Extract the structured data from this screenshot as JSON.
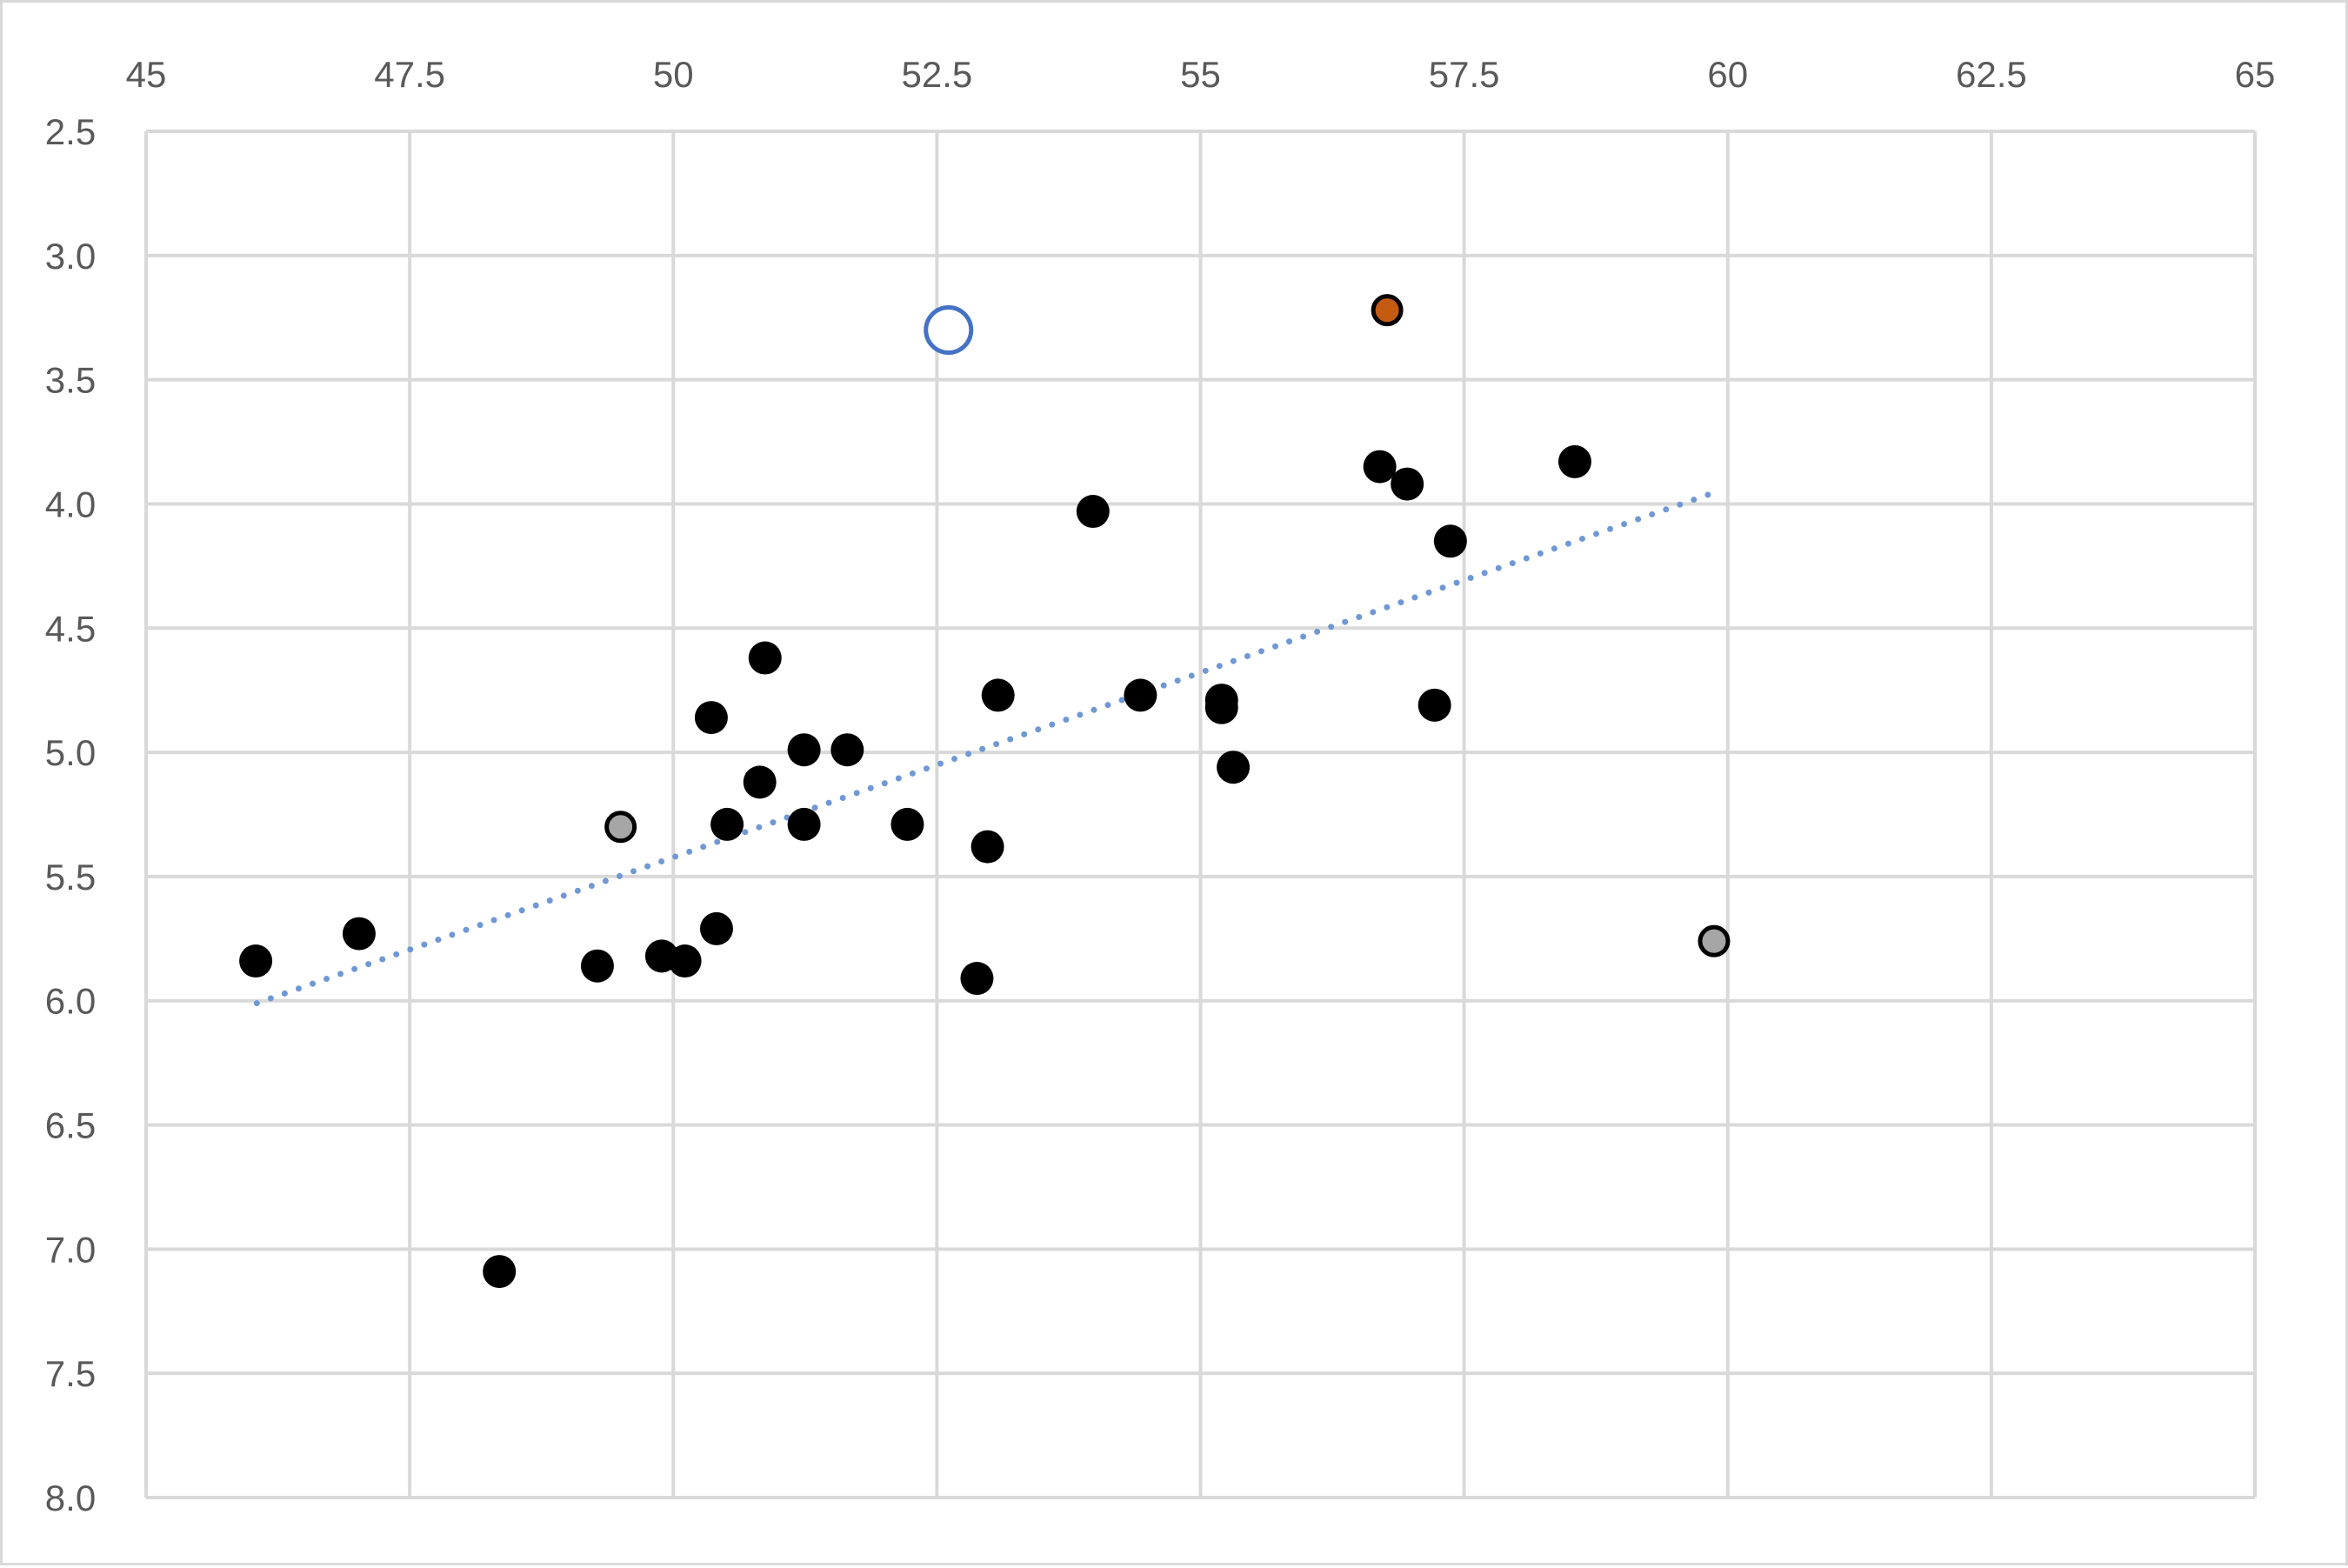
{
  "chart_data": {
    "type": "scatter",
    "title": "",
    "xlabel": "",
    "ylabel": "",
    "xlim": [
      45,
      65
    ],
    "ylim": [
      2.5,
      8.0
    ],
    "y_reversed": true,
    "x_axis_position": "top",
    "grid": true,
    "x_ticks": [
      "45",
      "47.5",
      "50",
      "52.5",
      "55",
      "57.5",
      "60",
      "62.5",
      "65"
    ],
    "x_tick_values": [
      45,
      47.5,
      50,
      52.5,
      55,
      57.5,
      60,
      62.5,
      65
    ],
    "y_ticks": [
      "2.5",
      "3.0",
      "3.5",
      "4.0",
      "4.5",
      "5.0",
      "5.5",
      "6.0",
      "6.5",
      "7.0",
      "7.5",
      "8.0"
    ],
    "y_tick_values": [
      2.5,
      3.0,
      3.5,
      4.0,
      4.5,
      5.0,
      5.5,
      6.0,
      6.5,
      7.0,
      7.5,
      8.0
    ],
    "series": [
      {
        "name": "main",
        "color": "#000000",
        "style": "filled",
        "points": [
          [
            46.04,
            5.84
          ],
          [
            47.02,
            5.73
          ],
          [
            48.35,
            7.09
          ],
          [
            49.28,
            5.86
          ],
          [
            49.89,
            5.82
          ],
          [
            50.11,
            5.84
          ],
          [
            50.41,
            5.71
          ],
          [
            50.36,
            4.86
          ],
          [
            50.51,
            5.29
          ],
          [
            50.82,
            5.12
          ],
          [
            50.87,
            4.62
          ],
          [
            51.24,
            4.99
          ],
          [
            51.24,
            5.29
          ],
          [
            51.65,
            4.99
          ],
          [
            52.22,
            5.29
          ],
          [
            52.88,
            5.91
          ],
          [
            52.98,
            5.38
          ],
          [
            53.08,
            4.77
          ],
          [
            53.98,
            4.03
          ],
          [
            54.43,
            4.77
          ],
          [
            55.2,
            4.79
          ],
          [
            55.2,
            4.82
          ],
          [
            55.31,
            5.06
          ],
          [
            56.7,
            3.85
          ],
          [
            56.96,
            3.92
          ],
          [
            57.22,
            4.81
          ],
          [
            57.37,
            4.15
          ],
          [
            58.55,
            3.83
          ]
        ]
      },
      {
        "name": "gray",
        "color": "#a6a6a6",
        "style": "outlined",
        "points": [
          [
            49.5,
            5.3
          ],
          [
            59.87,
            5.76
          ]
        ]
      },
      {
        "name": "orange",
        "color": "#c55a11",
        "style": "outlined",
        "points": [
          [
            56.77,
            3.22
          ]
        ]
      },
      {
        "name": "hollow",
        "color": "#4472c4",
        "style": "hollow",
        "points": [
          [
            52.61,
            3.3
          ]
        ]
      }
    ],
    "trendline": {
      "type": "linear",
      "style": "dotted",
      "color": "#6f98d4",
      "from": [
        46.05,
        6.01
      ],
      "to": [
        59.9,
        3.95
      ]
    }
  }
}
